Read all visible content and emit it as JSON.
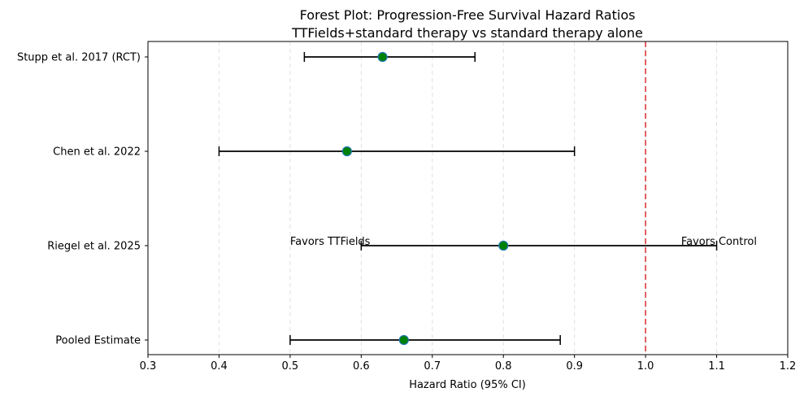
{
  "chart_data": {
    "type": "forest",
    "title": "Forest Plot: Progression-Free Survival Hazard Ratios",
    "subtitle": "TTFields+standard therapy vs standard therapy alone",
    "xlabel": "Hazard Ratio (95% CI)",
    "ylabel": "",
    "xlim": [
      0.3,
      1.2
    ],
    "xticks": [
      0.3,
      0.4,
      0.5,
      0.6,
      0.7,
      0.8,
      0.9,
      1.0,
      1.1,
      1.2
    ],
    "xtick_labels": [
      "0.3",
      "0.4",
      "0.5",
      "0.6",
      "0.7",
      "0.8",
      "0.9",
      "1.0",
      "1.1",
      "1.2"
    ],
    "grid": "vertical dashed",
    "studies": [
      {
        "label": "Stupp et al. 2017 (RCT)",
        "hr": 0.63,
        "ci_low": 0.52,
        "ci_high": 0.76
      },
      {
        "label": "Chen et al. 2022",
        "hr": 0.58,
        "ci_low": 0.4,
        "ci_high": 0.9
      },
      {
        "label": "Riegel et al. 2025",
        "hr": 0.8,
        "ci_low": 0.6,
        "ci_high": 1.1
      },
      {
        "label": "Pooled Estimate",
        "hr": 0.66,
        "ci_low": 0.5,
        "ci_high": 0.88
      }
    ],
    "reference_line": {
      "x": 1.0,
      "color": "#e05050",
      "style": "dashed"
    },
    "annotations": [
      {
        "text": "Favors TTFields",
        "x": 0.5
      },
      {
        "text": "Favors Control",
        "x": 1.05
      }
    ],
    "colors": {
      "marker_fill": "#008000",
      "marker_edge": "#1f77b4",
      "ci_line": "#000000",
      "grid": "#e0e0e0"
    }
  }
}
